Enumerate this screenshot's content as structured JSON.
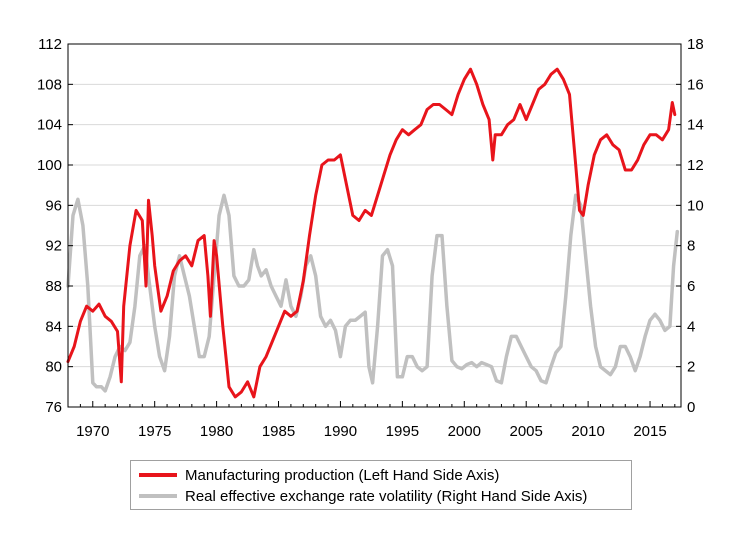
{
  "chart_data": {
    "type": "line",
    "title": "",
    "xlabel": "",
    "ylabel": "",
    "x_ticks": [
      "1970",
      "1975",
      "1980",
      "1985",
      "1990",
      "1995",
      "2000",
      "2005",
      "2010",
      "2015"
    ],
    "xlim": [
      1968,
      2017.5
    ],
    "left_axis": {
      "ylim": [
        76,
        112
      ],
      "ticks": [
        "76",
        "80",
        "84",
        "88",
        "92",
        "96",
        "100",
        "104",
        "108",
        "112"
      ]
    },
    "right_axis": {
      "ylim": [
        0,
        18
      ],
      "ticks": [
        "0",
        "2",
        "4",
        "6",
        "8",
        "10",
        "12",
        "14",
        "16",
        "18"
      ]
    },
    "grid": "horizontal",
    "legend_position": "bottom",
    "series": [
      {
        "name": "Manufacturing production (Left Hand Side Axis)",
        "axis": "left",
        "color": "#e8141b",
        "x": [
          1968.0,
          1968.5,
          1969.0,
          1969.5,
          1970.0,
          1970.5,
          1971.0,
          1971.5,
          1972.0,
          1972.3,
          1972.5,
          1973.0,
          1973.5,
          1974.0,
          1974.3,
          1974.5,
          1974.8,
          1975.0,
          1975.5,
          1976.0,
          1976.5,
          1977.0,
          1977.5,
          1978.0,
          1978.5,
          1979.0,
          1979.3,
          1979.5,
          1979.8,
          1980.0,
          1980.5,
          1981.0,
          1981.5,
          1982.0,
          1982.5,
          1983.0,
          1983.5,
          1984.0,
          1984.5,
          1985.0,
          1985.5,
          1986.0,
          1986.5,
          1987.0,
          1987.5,
          1988.0,
          1988.5,
          1989.0,
          1989.5,
          1990.0,
          1990.5,
          1991.0,
          1991.5,
          1992.0,
          1992.5,
          1993.0,
          1993.5,
          1994.0,
          1994.5,
          1995.0,
          1995.5,
          1996.0,
          1996.5,
          1997.0,
          1997.5,
          1998.0,
          1998.5,
          1999.0,
          1999.5,
          2000.0,
          2000.5,
          2001.0,
          2001.5,
          2002.0,
          2002.3,
          2002.5,
          2003.0,
          2003.5,
          2004.0,
          2004.5,
          2005.0,
          2005.5,
          2006.0,
          2006.5,
          2007.0,
          2007.5,
          2008.0,
          2008.5,
          2009.0,
          2009.3,
          2009.6,
          2010.0,
          2010.5,
          2011.0,
          2011.5,
          2012.0,
          2012.5,
          2013.0,
          2013.5,
          2014.0,
          2014.5,
          2015.0,
          2015.5,
          2016.0,
          2016.5,
          2016.8,
          2017.0
        ],
        "y": [
          80.5,
          82.0,
          84.5,
          86.0,
          85.5,
          86.2,
          85.0,
          84.5,
          83.5,
          78.5,
          86.0,
          92.0,
          95.5,
          94.5,
          88.0,
          96.5,
          93.0,
          90.0,
          85.5,
          87.0,
          89.5,
          90.5,
          91.0,
          90.0,
          92.5,
          93.0,
          89.0,
          85.0,
          92.5,
          91.0,
          84.0,
          78.0,
          77.0,
          77.5,
          78.5,
          77.0,
          80.0,
          81.0,
          82.5,
          84.0,
          85.5,
          85.0,
          85.5,
          88.5,
          93.0,
          97.0,
          100.0,
          100.5,
          100.5,
          101.0,
          98.0,
          95.0,
          94.5,
          95.5,
          95.0,
          97.0,
          99.0,
          101.0,
          102.5,
          103.5,
          103.0,
          103.5,
          104.0,
          105.5,
          106.0,
          106.0,
          105.5,
          105.0,
          107.0,
          108.5,
          109.5,
          108.0,
          106.0,
          104.5,
          100.5,
          103.0,
          103.0,
          104.0,
          104.5,
          106.0,
          104.5,
          106.0,
          107.5,
          108.0,
          109.0,
          109.5,
          108.5,
          107.0,
          100.0,
          95.5,
          95.0,
          98.0,
          101.0,
          102.5,
          103.0,
          102.0,
          101.5,
          99.5,
          99.5,
          100.5,
          102.0,
          103.0,
          103.0,
          102.5,
          103.5,
          106.2,
          105.0
        ]
      },
      {
        "name": "Real effective exchange rate volatility (Right Hand Side Axis)",
        "axis": "right",
        "color": "#c0c0c0",
        "x": [
          1968.0,
          1968.4,
          1968.8,
          1969.2,
          1969.6,
          1970.0,
          1970.3,
          1970.7,
          1971.0,
          1971.4,
          1971.8,
          1972.2,
          1972.6,
          1973.0,
          1973.4,
          1973.8,
          1974.2,
          1974.6,
          1975.0,
          1975.4,
          1975.8,
          1976.2,
          1976.6,
          1977.0,
          1977.4,
          1977.8,
          1978.2,
          1978.6,
          1979.0,
          1979.4,
          1979.8,
          1980.2,
          1980.6,
          1981.0,
          1981.4,
          1981.8,
          1982.2,
          1982.6,
          1983.0,
          1983.3,
          1983.6,
          1984.0,
          1984.4,
          1984.8,
          1985.2,
          1985.6,
          1986.0,
          1986.4,
          1986.8,
          1987.2,
          1987.6,
          1988.0,
          1988.4,
          1988.8,
          1989.2,
          1989.6,
          1990.0,
          1990.4,
          1990.8,
          1991.2,
          1991.6,
          1992.0,
          1992.3,
          1992.6,
          1993.0,
          1993.4,
          1993.8,
          1994.2,
          1994.6,
          1995.0,
          1995.4,
          1995.8,
          1996.2,
          1996.6,
          1997.0,
          1997.4,
          1997.8,
          1998.2,
          1998.6,
          1999.0,
          1999.4,
          1999.8,
          2000.2,
          2000.6,
          2001.0,
          2001.4,
          2001.8,
          2002.2,
          2002.6,
          2003.0,
          2003.4,
          2003.8,
          2004.2,
          2004.6,
          2005.0,
          2005.4,
          2005.8,
          2006.2,
          2006.6,
          2007.0,
          2007.4,
          2007.8,
          2008.2,
          2008.6,
          2009.0,
          2009.4,
          2009.8,
          2010.2,
          2010.6,
          2011.0,
          2011.4,
          2011.8,
          2012.2,
          2012.6,
          2013.0,
          2013.4,
          2013.8,
          2014.2,
          2014.6,
          2015.0,
          2015.4,
          2015.8,
          2016.2,
          2016.6,
          2016.9,
          2017.2
        ],
        "y": [
          6.0,
          9.5,
          10.3,
          9.0,
          6.0,
          1.2,
          1.0,
          1.0,
          0.8,
          1.5,
          2.5,
          3.0,
          2.8,
          3.2,
          5.0,
          7.5,
          8.0,
          6.0,
          4.0,
          2.5,
          1.8,
          3.5,
          6.5,
          7.5,
          6.5,
          5.5,
          4.0,
          2.5,
          2.5,
          3.5,
          6.5,
          9.5,
          10.5,
          9.5,
          6.5,
          6.0,
          6.0,
          6.3,
          7.8,
          7.0,
          6.5,
          6.8,
          6.0,
          5.5,
          5.0,
          6.3,
          5.0,
          4.5,
          5.5,
          7.0,
          7.5,
          6.5,
          4.5,
          4.0,
          4.3,
          3.8,
          2.5,
          4.0,
          4.3,
          4.3,
          4.5,
          4.7,
          2.0,
          1.2,
          4.0,
          7.5,
          7.8,
          7.0,
          1.5,
          1.5,
          2.5,
          2.5,
          2.0,
          1.8,
          2.0,
          6.5,
          8.5,
          8.5,
          5.0,
          2.3,
          2.0,
          1.9,
          2.1,
          2.2,
          2.0,
          2.2,
          2.1,
          2.0,
          1.3,
          1.2,
          2.5,
          3.5,
          3.5,
          3.0,
          2.5,
          2.0,
          1.8,
          1.3,
          1.2,
          2.0,
          2.7,
          3.0,
          5.5,
          8.5,
          10.5,
          10.0,
          7.5,
          5.0,
          3.0,
          2.0,
          1.8,
          1.6,
          2.0,
          3.0,
          3.0,
          2.5,
          1.8,
          2.5,
          3.5,
          4.3,
          4.6,
          4.3,
          3.8,
          4.0,
          7.0,
          8.7
        ]
      }
    ]
  }
}
